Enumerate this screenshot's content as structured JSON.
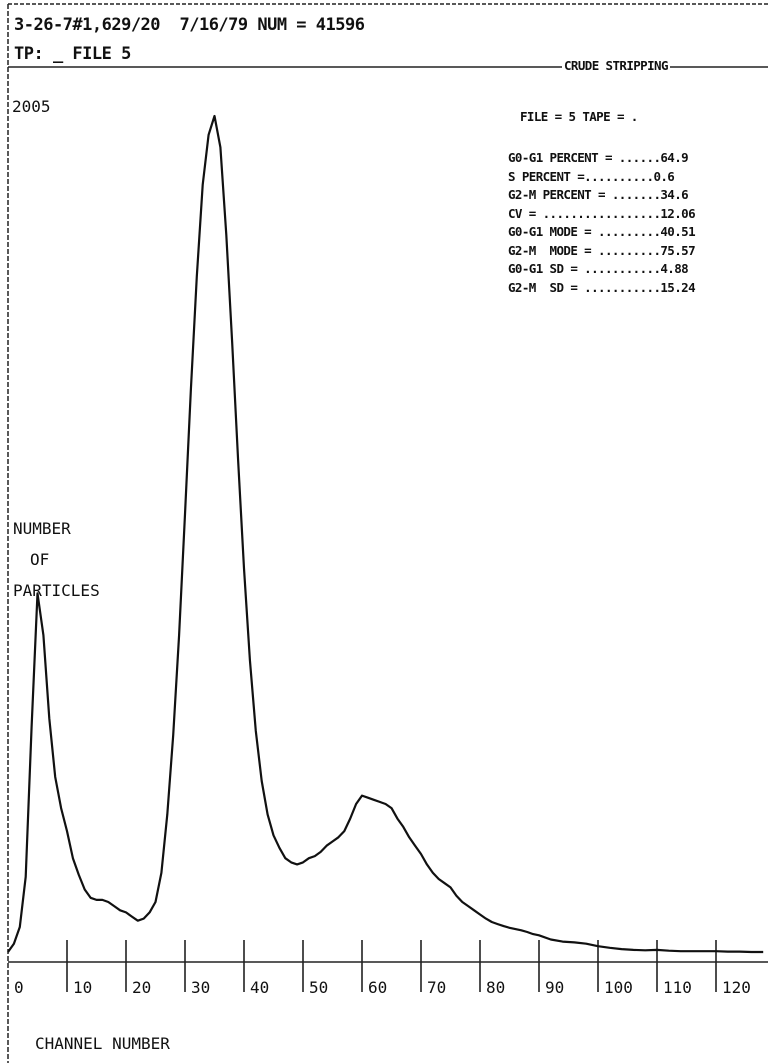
{
  "header": {
    "line1": "3-26-7#1,629/20  7/16/79 NUM = 41596",
    "line2": "TP: _ FILE 5"
  },
  "report": {
    "title": "CRUDE STRIPPING",
    "file_line": "FILE = 5 TAPE = .",
    "stats": [
      "G0-G1 PERCENT = ......64.9",
      "S PERCENT =..........0.6",
      "G2-M PERCENT = .......34.6",
      "CV = .................12.06",
      "G0-G1 MODE = .........40.51",
      "G2-M  MODE = .........75.57",
      "G0-G1 SD = ...........4.88",
      "G2-M  SD = ...........15.24"
    ]
  },
  "chart_data": {
    "type": "line",
    "title": "",
    "ylabel": "NUMBER OF PARTICLES",
    "ylabel_lines": [
      "NUMBER",
      "OF",
      "PARTICLES"
    ],
    "xlabel": "CHANNEL NUMBER",
    "ymax_label": "2005",
    "xlim": [
      0,
      128
    ],
    "ylim": [
      0,
      2005
    ],
    "xticks": [
      0,
      10,
      20,
      30,
      40,
      50,
      60,
      70,
      80,
      90,
      100,
      110,
      120
    ],
    "xtick_labels": [
      "0",
      "10",
      "20",
      "30",
      "40",
      "50",
      "60",
      "70",
      "80",
      "90",
      "100",
      "110",
      "120"
    ],
    "grid": false,
    "series": [
      {
        "x": [
          0,
          1,
          2,
          3,
          4,
          5,
          6,
          7,
          8,
          9,
          10,
          11,
          12,
          13,
          14,
          15,
          16,
          17,
          18,
          19,
          20,
          21,
          22,
          23,
          24,
          25,
          26,
          27,
          28,
          29,
          30,
          31,
          32,
          33,
          34,
          35,
          36,
          37,
          38,
          39,
          40,
          41,
          42,
          43,
          44,
          45,
          46,
          47,
          48,
          49,
          50,
          51,
          52,
          53,
          54,
          55,
          56,
          57,
          58,
          59,
          60,
          61,
          62,
          63,
          64,
          65,
          66,
          67,
          68,
          69,
          70,
          71,
          72,
          73,
          74,
          75,
          76,
          77,
          78,
          79,
          80,
          81,
          82,
          83,
          84,
          85,
          86,
          87,
          88,
          89,
          90,
          92,
          94,
          96,
          98,
          100,
          102,
          104,
          106,
          108,
          110,
          112,
          114,
          116,
          118,
          120,
          122,
          124,
          126,
          128
        ],
        "y": [
          0,
          20,
          60,
          180,
          540,
          860,
          760,
          560,
          420,
          345,
          290,
          225,
          185,
          150,
          130,
          125,
          125,
          120,
          110,
          100,
          95,
          85,
          75,
          80,
          95,
          120,
          190,
          330,
          520,
          760,
          1050,
          1350,
          1620,
          1840,
          1960,
          2005,
          1930,
          1720,
          1460,
          1180,
          920,
          700,
          530,
          410,
          330,
          280,
          250,
          225,
          215,
          210,
          215,
          225,
          230,
          240,
          255,
          265,
          275,
          290,
          320,
          355,
          375,
          370,
          365,
          360,
          355,
          345,
          320,
          300,
          275,
          255,
          235,
          210,
          190,
          175,
          165,
          155,
          135,
          120,
          110,
          100,
          90,
          80,
          72,
          67,
          62,
          58,
          55,
          52,
          48,
          43,
          40,
          30,
          25,
          23,
          20,
          14,
          10,
          7,
          5,
          4,
          5,
          3,
          2,
          2,
          2,
          2,
          1,
          1,
          0,
          0
        ]
      }
    ]
  }
}
